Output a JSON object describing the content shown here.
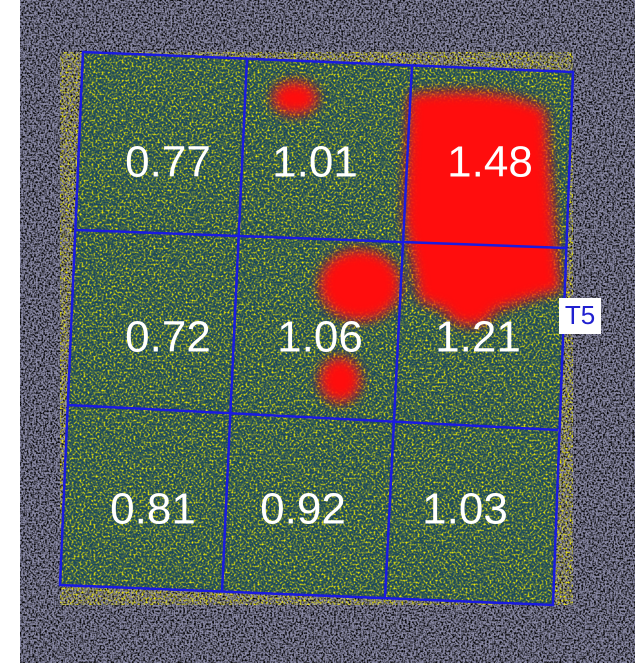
{
  "label": "T5",
  "grid": [
    [
      0.77,
      1.01,
      1.48
    ],
    [
      0.72,
      1.06,
      1.21
    ],
    [
      0.81,
      0.92,
      1.03
    ]
  ]
}
